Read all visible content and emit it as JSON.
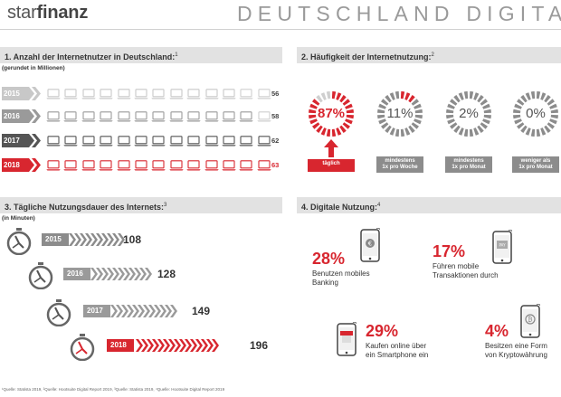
{
  "header": {
    "logo_light": "star",
    "logo_bold": "finanz",
    "title": "DEUTSCHLAND DIGITAL"
  },
  "section1": {
    "title": "1. Anzahl der Internetnutzer in Deutschland:",
    "sup": "1",
    "note": "(gerundet in Millionen)",
    "rows": [
      {
        "year": "2015",
        "value": "56"
      },
      {
        "year": "2016",
        "value": "58"
      },
      {
        "year": "2017",
        "value": "62"
      },
      {
        "year": "2018",
        "value": "63"
      }
    ]
  },
  "section2": {
    "title": "2. Häufigkeit der Internetnutzung:",
    "sup": "2",
    "items": [
      {
        "pct": "87%",
        "label_line1": "täglich",
        "label_line2": "",
        "fill": 0.87
      },
      {
        "pct": "11%",
        "label_line1": "mindestens",
        "label_line2": "1x pro Woche",
        "fill": 0.11
      },
      {
        "pct": "2%",
        "label_line1": "mindestens",
        "label_line2": "1x pro Monat",
        "fill": 0.02
      },
      {
        "pct": "0%",
        "label_line1": "weniger als",
        "label_line2": "1x pro Monat",
        "fill": 0.0
      }
    ]
  },
  "section3": {
    "title": "3. Tägliche Nutzungsdauer des Internets:",
    "sup": "3",
    "note": "(in Minuten)",
    "rows": [
      {
        "year": "2015",
        "value": "108"
      },
      {
        "year": "2016",
        "value": "128"
      },
      {
        "year": "2017",
        "value": "149"
      },
      {
        "year": "2018",
        "value": "196"
      }
    ]
  },
  "section4": {
    "title": "4. Digitale Nutzung:",
    "sup": "4",
    "items": [
      {
        "pct": "28%",
        "line1": "Benutzen mobiles",
        "line2": "Banking",
        "icon": "mobile-banking-icon"
      },
      {
        "pct": "17%",
        "line1": "Führen mobile",
        "line2": "Transaktionen durch",
        "icon": "mobile-payment-icon"
      },
      {
        "pct": "29%",
        "line1": "Kaufen online über",
        "line2": "ein Smartphone ein",
        "icon": "mobile-shop-icon"
      },
      {
        "pct": "4%",
        "line1": "Besitzen eine Form",
        "line2": "von Kryptowährung",
        "icon": "bitcoin-phone-icon"
      }
    ]
  },
  "footer": "¹Quelle: Statista 2019, ²Quelle: Hootsuite Digital Report 2019, ³Quelle: Statista 2019, ⁴Quelle: Hootsuite Digital Report 2019",
  "colors": {
    "red": "#d8262f",
    "dark": "#555555",
    "grey": "#9a9a9a",
    "light": "#c8c8c8"
  }
}
